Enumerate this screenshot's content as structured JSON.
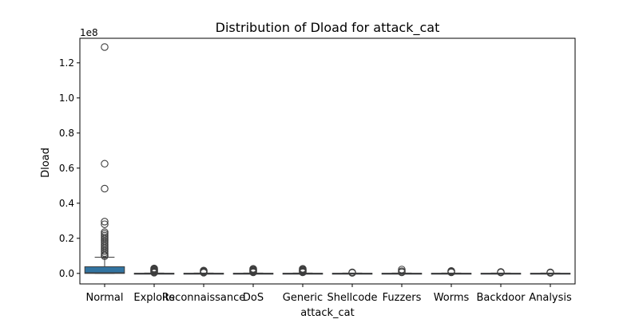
{
  "chart_data": {
    "type": "box",
    "title": "Distribution of Dload for attack_cat",
    "xlabel": "attack_cat",
    "ylabel": "Dload",
    "y_scale_label": "1e8",
    "ylim": [
      -0.06,
      1.34
    ],
    "y_ticks": [
      {
        "value": 0.0,
        "label": "0.0"
      },
      {
        "value": 0.2,
        "label": "0.2"
      },
      {
        "value": 0.4,
        "label": "0.4"
      },
      {
        "value": 0.6,
        "label": "0.6"
      },
      {
        "value": 0.8,
        "label": "0.8"
      },
      {
        "value": 1.0,
        "label": "1.0"
      },
      {
        "value": 1.2,
        "label": "1.2"
      }
    ],
    "box_color": "#3274a1",
    "outlier_color": "#3d3d3d",
    "categories": [
      "Normal",
      "Exploits",
      "Reconnaissance",
      "DoS",
      "Generic",
      "Shellcode",
      "Fuzzers",
      "Worms",
      "Backdoor",
      "Analysis"
    ],
    "boxes": [
      {
        "q1": 0.0,
        "median": 0.003,
        "q3": 0.038,
        "whisker_low": 0.0,
        "whisker_high": 0.092,
        "outliers": [
          1.29,
          0.625,
          0.483,
          0.295,
          0.28,
          0.235,
          0.225,
          0.215,
          0.205,
          0.195,
          0.185,
          0.175,
          0.165,
          0.155,
          0.145,
          0.135,
          0.125,
          0.115,
          0.105,
          0.098
        ]
      },
      {
        "q1": 0.0,
        "median": 0.0,
        "q3": 0.001,
        "whisker_low": 0.0,
        "whisker_high": 0.002,
        "outliers": [
          0.028,
          0.024,
          0.02,
          0.016,
          0.012,
          0.008,
          0.004
        ]
      },
      {
        "q1": 0.0,
        "median": 0.0,
        "q3": 0.001,
        "whisker_low": 0.0,
        "whisker_high": 0.002,
        "outliers": [
          0.016,
          0.012,
          0.008,
          0.004
        ]
      },
      {
        "q1": 0.0,
        "median": 0.0,
        "q3": 0.001,
        "whisker_low": 0.0,
        "whisker_high": 0.002,
        "outliers": [
          0.026,
          0.022,
          0.018,
          0.014,
          0.01,
          0.006
        ]
      },
      {
        "q1": 0.0,
        "median": 0.0,
        "q3": 0.001,
        "whisker_low": 0.0,
        "whisker_high": 0.002,
        "outliers": [
          0.026,
          0.022,
          0.018,
          0.014,
          0.01,
          0.006
        ]
      },
      {
        "q1": 0.0,
        "median": 0.0,
        "q3": 0.001,
        "whisker_low": 0.0,
        "whisker_high": 0.002,
        "outliers": [
          0.006,
          0.003
        ]
      },
      {
        "q1": 0.0,
        "median": 0.0,
        "q3": 0.001,
        "whisker_low": 0.0,
        "whisker_high": 0.002,
        "outliers": [
          0.022,
          0.012,
          0.006
        ]
      },
      {
        "q1": 0.0,
        "median": 0.0,
        "q3": 0.001,
        "whisker_low": 0.0,
        "whisker_high": 0.002,
        "outliers": [
          0.014,
          0.01,
          0.006
        ]
      },
      {
        "q1": 0.0,
        "median": 0.0,
        "q3": 0.001,
        "whisker_low": 0.0,
        "whisker_high": 0.002,
        "outliers": [
          0.008,
          0.005
        ]
      },
      {
        "q1": 0.0,
        "median": 0.0,
        "q3": 0.001,
        "whisker_low": 0.0,
        "whisker_high": 0.002,
        "outliers": [
          0.006,
          0.003
        ]
      }
    ]
  }
}
